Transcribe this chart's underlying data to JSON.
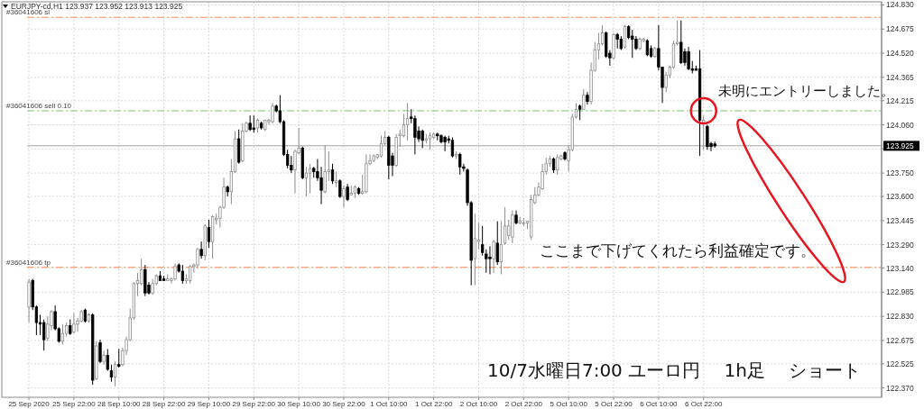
{
  "chart_data": {
    "type": "candlestick",
    "title": "EURJPY-cd,H1  123.937 123.952 123.913 123.925",
    "annotations": [
      "未明にエントリーしました。",
      "ここまで下げてくれたら利益確定です。",
      "10/7水曜日7:00 ユーロ円　 1h足　 ショート"
    ],
    "categories": [
      "25 Sep 2020",
      null,
      null,
      null,
      null,
      null,
      null,
      null,
      null,
      null,
      null,
      null,
      "25 Sep 22:00",
      null,
      null,
      null,
      null,
      null,
      null,
      null,
      null,
      null,
      null,
      null,
      "28 Sep 10:00",
      null,
      null,
      null,
      null,
      null,
      null,
      null,
      null,
      null,
      null,
      null,
      "28 Sep 22:00",
      null,
      null,
      null,
      null,
      null,
      null,
      null,
      null,
      null,
      null,
      null,
      "29 Sep 10:00",
      null,
      null,
      null,
      null,
      null,
      null,
      null,
      null,
      null,
      null,
      null,
      "29 Sep 22:00",
      null,
      null,
      null,
      null,
      null,
      null,
      null,
      null,
      null,
      null,
      null,
      "30 Sep 10:00",
      null,
      null,
      null,
      null,
      null,
      null,
      null,
      null,
      null,
      null,
      null,
      "30 Sep 22:00",
      null,
      null,
      null,
      null,
      null,
      null,
      null,
      null,
      null,
      null,
      null,
      "1 Oct 10:00",
      null,
      null,
      null,
      null,
      null,
      null,
      null,
      null,
      null,
      null,
      null,
      "1 Oct 22:00",
      null,
      null,
      null,
      null,
      null,
      null,
      null,
      null,
      null,
      null,
      null,
      "2 Oct 10:00",
      null,
      null,
      null,
      null,
      null,
      null,
      null,
      null,
      null,
      null,
      null,
      "2 Oct 22:00",
      null,
      null,
      null,
      null,
      null,
      null,
      null,
      null,
      null,
      null,
      null,
      "5 Oct 10:00",
      null,
      null,
      null,
      null,
      null,
      null,
      null,
      null,
      null,
      null,
      null,
      "5 Oct 22:00",
      null,
      null,
      null,
      null,
      null,
      null,
      null,
      null,
      null,
      null,
      null,
      "6 Oct 10:00",
      null,
      null,
      null,
      null,
      null,
      null,
      null,
      null,
      null,
      null,
      null,
      "6 Oct 22:00",
      null,
      null,
      null,
      null,
      null,
      null,
      null,
      null,
      null,
      null,
      null,
      null,
      null,
      null,
      null,
      null,
      null,
      null,
      null,
      null,
      null,
      null,
      null,
      null,
      null,
      null,
      null,
      null,
      null,
      null,
      null,
      null,
      null,
      null,
      null,
      null,
      null,
      null,
      null,
      null,
      null,
      null,
      null,
      null,
      null,
      null,
      null
    ],
    "ohlc": [
      [
        122.89,
        123.07,
        122.79,
        123.05
      ],
      [
        123.06,
        123.07,
        122.87,
        122.89
      ],
      [
        122.89,
        122.9,
        122.71,
        122.79
      ],
      [
        122.79,
        122.84,
        122.71,
        122.78
      ],
      [
        122.79,
        122.81,
        122.61,
        122.68
      ],
      [
        122.69,
        122.83,
        122.67,
        122.78
      ],
      [
        122.77,
        122.87,
        122.74,
        122.86
      ],
      [
        122.86,
        122.9,
        122.74,
        122.75
      ],
      [
        122.75,
        122.76,
        122.66,
        122.67
      ],
      [
        122.67,
        122.78,
        122.65,
        122.72
      ],
      [
        122.72,
        122.79,
        122.7,
        122.77
      ],
      [
        122.77,
        122.81,
        122.71,
        122.72
      ],
      [
        122.73,
        122.85,
        122.72,
        122.78
      ],
      [
        122.78,
        122.82,
        122.73,
        122.8
      ],
      [
        122.8,
        122.87,
        122.79,
        122.86
      ],
      [
        122.87,
        122.88,
        122.79,
        122.8
      ],
      [
        122.8,
        122.85,
        122.79,
        122.84
      ],
      [
        122.84,
        122.85,
        122.39,
        122.42
      ],
      [
        122.43,
        122.67,
        122.42,
        122.64
      ],
      [
        122.66,
        122.68,
        122.53,
        122.54
      ],
      [
        122.54,
        122.61,
        122.52,
        122.58
      ],
      [
        122.58,
        122.62,
        122.48,
        122.49
      ],
      [
        122.48,
        122.52,
        122.41,
        122.44
      ],
      [
        122.44,
        122.54,
        122.38,
        122.52
      ],
      [
        122.52,
        122.62,
        122.5,
        122.51
      ],
      [
        122.52,
        122.63,
        122.51,
        122.61
      ],
      [
        122.61,
        122.7,
        122.58,
        122.68
      ],
      [
        122.68,
        122.88,
        122.67,
        122.82
      ],
      [
        122.82,
        123.05,
        122.81,
        123.04
      ],
      [
        123.04,
        123.11,
        122.96,
        123.06
      ],
      [
        123.04,
        123.2,
        123.03,
        123.13
      ],
      [
        123.13,
        123.16,
        122.96,
        122.98
      ],
      [
        123.03,
        123.05,
        122.97,
        122.98
      ],
      [
        122.98,
        123.07,
        122.97,
        123.04
      ],
      [
        123.04,
        123.1,
        123.03,
        123.09
      ],
      [
        123.09,
        123.12,
        123.06,
        123.06
      ],
      [
        123.07,
        123.09,
        123.06,
        123.06
      ],
      [
        123.06,
        123.1,
        123.06,
        123.07
      ],
      [
        123.06,
        123.08,
        123.04,
        123.07
      ],
      [
        123.07,
        123.17,
        123.06,
        123.15
      ],
      [
        123.16,
        123.17,
        123.11,
        123.12
      ],
      [
        123.12,
        123.16,
        123.04,
        123.06
      ],
      [
        123.06,
        123.1,
        123.04,
        123.07
      ],
      [
        123.06,
        123.16,
        123.04,
        123.15
      ],
      [
        123.15,
        123.17,
        123.11,
        123.16
      ],
      [
        123.16,
        123.27,
        123.14,
        123.26
      ],
      [
        123.26,
        123.31,
        123.2,
        123.22
      ],
      [
        123.22,
        123.42,
        123.19,
        123.41
      ],
      [
        123.4,
        123.45,
        123.27,
        123.31
      ],
      [
        123.31,
        123.48,
        123.2,
        123.47
      ],
      [
        123.45,
        123.49,
        123.42,
        123.46
      ],
      [
        123.46,
        123.54,
        123.4,
        123.53
      ],
      [
        123.53,
        123.72,
        123.52,
        123.66
      ],
      [
        123.66,
        123.67,
        123.6,
        123.63
      ],
      [
        123.63,
        123.84,
        123.55,
        123.76
      ],
      [
        123.76,
        124.02,
        123.75,
        123.97
      ],
      [
        123.97,
        124.03,
        123.81,
        123.82
      ],
      [
        123.83,
        124.07,
        123.82,
        124.02
      ],
      [
        124.02,
        124.08,
        124.01,
        124.07
      ],
      [
        124.07,
        124.12,
        124.02,
        124.03
      ],
      [
        124.04,
        124.12,
        124.01,
        124.03
      ],
      [
        124.04,
        124.1,
        124.01,
        124.09
      ],
      [
        124.07,
        124.08,
        124.03,
        124.04
      ],
      [
        124.03,
        124.09,
        124.02,
        124.09
      ],
      [
        124.08,
        124.1,
        124.06,
        124.09
      ],
      [
        124.08,
        124.2,
        124.07,
        124.18
      ],
      [
        124.18,
        124.19,
        124.14,
        124.15
      ],
      [
        124.15,
        124.25,
        124.07,
        124.08
      ],
      [
        124.08,
        124.09,
        123.86,
        123.87
      ],
      [
        123.87,
        123.9,
        123.78,
        123.8
      ],
      [
        123.8,
        123.86,
        123.75,
        123.77
      ],
      [
        123.77,
        123.9,
        123.62,
        123.89
      ],
      [
        123.88,
        124.04,
        123.87,
        123.91
      ],
      [
        123.91,
        123.92,
        123.71,
        123.72
      ],
      [
        123.72,
        123.79,
        123.6,
        123.75
      ],
      [
        123.75,
        123.81,
        123.62,
        123.78
      ],
      [
        123.78,
        123.79,
        123.72,
        123.76
      ],
      [
        123.76,
        123.84,
        123.7,
        123.72
      ],
      [
        123.72,
        123.79,
        123.55,
        123.64
      ],
      [
        123.63,
        123.93,
        123.62,
        123.76
      ],
      [
        123.76,
        123.89,
        123.7,
        123.77
      ],
      [
        123.77,
        123.81,
        123.68,
        123.7
      ],
      [
        123.69,
        123.76,
        123.66,
        123.7
      ],
      [
        123.7,
        123.71,
        123.59,
        123.6
      ],
      [
        123.6,
        123.67,
        123.53,
        123.65
      ],
      [
        123.66,
        123.68,
        123.57,
        123.58
      ],
      [
        123.61,
        123.67,
        123.61,
        123.62
      ],
      [
        123.62,
        123.67,
        123.59,
        123.66
      ],
      [
        123.65,
        123.66,
        123.61,
        123.62
      ],
      [
        123.62,
        123.74,
        123.61,
        123.63
      ],
      [
        123.63,
        123.87,
        123.62,
        123.81
      ],
      [
        123.81,
        123.87,
        123.8,
        123.83
      ],
      [
        123.83,
        123.87,
        123.82,
        123.86
      ],
      [
        123.85,
        123.87,
        123.84,
        123.87
      ],
      [
        123.86,
        123.99,
        123.85,
        123.94
      ],
      [
        123.94,
        124.02,
        123.93,
        123.98
      ],
      [
        123.98,
        123.99,
        123.71,
        123.8
      ],
      [
        123.86,
        123.88,
        123.73,
        123.8
      ],
      [
        123.8,
        124.0,
        123.79,
        123.98
      ],
      [
        123.99,
        124.03,
        123.92,
        124.0
      ],
      [
        123.99,
        124.13,
        123.98,
        124.06
      ],
      [
        124.06,
        124.2,
        123.96,
        124.1
      ],
      [
        124.11,
        124.16,
        124.07,
        124.1
      ],
      [
        124.1,
        124.12,
        123.87,
        123.98
      ],
      [
        124.02,
        124.05,
        123.95,
        123.97
      ],
      [
        124.02,
        124.03,
        123.91,
        123.96
      ],
      [
        123.96,
        124.0,
        123.94,
        123.97
      ],
      [
        123.97,
        124.01,
        123.9,
        123.99
      ],
      [
        123.98,
        124.01,
        123.97,
        124.0
      ],
      [
        124.0,
        124.01,
        123.96,
        123.99
      ],
      [
        123.99,
        124.0,
        123.94,
        123.95
      ],
      [
        123.98,
        123.99,
        123.89,
        123.95
      ],
      [
        123.97,
        123.99,
        123.94,
        123.96
      ],
      [
        123.96,
        123.98,
        123.85,
        123.86
      ],
      [
        123.86,
        123.89,
        123.84,
        123.87
      ],
      [
        123.87,
        123.88,
        123.74,
        123.79
      ],
      [
        123.79,
        123.81,
        123.76,
        123.78
      ],
      [
        123.77,
        123.78,
        123.54,
        123.56
      ],
      [
        123.56,
        123.57,
        123.03,
        123.19
      ],
      [
        123.2,
        123.49,
        123.03,
        123.33
      ],
      [
        123.31,
        123.43,
        123.26,
        123.32
      ],
      [
        123.29,
        123.41,
        123.22,
        123.24
      ],
      [
        123.23,
        123.26,
        123.11,
        123.2
      ],
      [
        123.21,
        123.28,
        123.1,
        123.2
      ],
      [
        123.2,
        123.32,
        123.11,
        123.31
      ],
      [
        123.3,
        123.44,
        123.16,
        123.18
      ],
      [
        123.18,
        123.44,
        123.1,
        123.29
      ],
      [
        123.3,
        123.53,
        123.29,
        123.41
      ],
      [
        123.35,
        123.45,
        123.32,
        123.41
      ],
      [
        123.34,
        123.51,
        123.3,
        123.48
      ],
      [
        123.48,
        123.51,
        123.42,
        123.43
      ],
      [
        123.43,
        123.47,
        123.42,
        123.44
      ],
      [
        123.43,
        123.46,
        123.41,
        123.43
      ],
      [
        123.43,
        123.44,
        123.39,
        123.44
      ],
      [
        123.34,
        123.61,
        123.32,
        123.58
      ],
      [
        123.56,
        123.66,
        123.55,
        123.61
      ],
      [
        123.61,
        123.69,
        123.6,
        123.66
      ],
      [
        123.65,
        123.81,
        123.64,
        123.76
      ],
      [
        123.76,
        123.85,
        123.74,
        123.81
      ],
      [
        123.81,
        123.86,
        123.79,
        123.84
      ],
      [
        123.84,
        123.85,
        123.75,
        123.77
      ],
      [
        123.77,
        123.87,
        123.74,
        123.85
      ],
      [
        123.84,
        123.87,
        123.83,
        123.86
      ],
      [
        123.88,
        123.89,
        123.83,
        123.84
      ],
      [
        123.83,
        123.93,
        123.76,
        123.9
      ],
      [
        123.9,
        124.13,
        123.89,
        124.11
      ],
      [
        124.11,
        124.2,
        124.1,
        124.16
      ],
      [
        124.18,
        124.19,
        124.09,
        124.16
      ],
      [
        124.16,
        124.29,
        124.16,
        124.25
      ],
      [
        124.25,
        124.27,
        124.19,
        124.21
      ],
      [
        124.21,
        124.46,
        124.19,
        124.41
      ],
      [
        124.41,
        124.59,
        124.4,
        124.54
      ],
      [
        124.54,
        124.65,
        124.48,
        124.58
      ],
      [
        124.58,
        124.7,
        124.57,
        124.65
      ],
      [
        124.65,
        124.66,
        124.49,
        124.5
      ],
      [
        124.52,
        124.54,
        124.44,
        124.49
      ],
      [
        124.49,
        124.65,
        124.48,
        124.64
      ],
      [
        124.64,
        124.65,
        124.55,
        124.61
      ],
      [
        124.61,
        124.63,
        124.54,
        124.55
      ],
      [
        124.56,
        124.7,
        124.55,
        124.69
      ],
      [
        124.69,
        124.7,
        124.61,
        124.62
      ],
      [
        124.63,
        124.67,
        124.49,
        124.61
      ],
      [
        124.61,
        124.63,
        124.54,
        124.55
      ],
      [
        124.55,
        124.62,
        124.54,
        124.61
      ],
      [
        124.6,
        124.62,
        124.59,
        124.61
      ],
      [
        124.6,
        124.61,
        124.5,
        124.51
      ],
      [
        124.55,
        124.57,
        124.49,
        124.5
      ],
      [
        124.5,
        124.56,
        124.49,
        124.55
      ],
      [
        124.55,
        124.7,
        124.41,
        124.43
      ],
      [
        124.43,
        124.43,
        124.2,
        124.3
      ],
      [
        124.3,
        124.4,
        124.27,
        124.38
      ],
      [
        124.38,
        124.44,
        124.36,
        124.43
      ],
      [
        124.43,
        124.6,
        124.42,
        124.58
      ],
      [
        124.58,
        124.73,
        124.57,
        124.59
      ],
      [
        124.59,
        124.73,
        124.45,
        124.46
      ],
      [
        124.53,
        124.55,
        124.44,
        124.46
      ],
      [
        124.53,
        124.56,
        124.41,
        124.42
      ],
      [
        124.42,
        124.47,
        124.39,
        124.41
      ],
      [
        124.42,
        124.44,
        124.41,
        124.41
      ],
      [
        124.42,
        124.54,
        123.86,
        124.09
      ],
      [
        124.07,
        124.12,
        123.9,
        124.09
      ],
      [
        124.05,
        124.06,
        123.9,
        123.92
      ],
      [
        123.94,
        123.95,
        123.89,
        123.92
      ],
      [
        123.937,
        123.952,
        123.913,
        123.925
      ],
      null,
      null,
      null,
      null,
      null,
      null,
      null,
      null,
      null,
      null,
      null,
      null,
      null,
      null,
      null,
      null,
      null,
      null,
      null,
      null,
      null,
      null,
      null,
      null,
      null,
      null,
      null,
      null,
      null,
      null,
      null,
      null,
      null,
      null,
      null,
      null,
      null,
      null,
      null,
      null,
      null,
      null,
      null,
      null
    ],
    "ylim": [
      122.31,
      124.85
    ],
    "yticks": [
      {
        "value": 124.83,
        "label": "124.830"
      },
      {
        "value": 124.675,
        "label": "124.675"
      },
      {
        "value": 124.52,
        "label": "124.520"
      },
      124.365,
      124.215,
      {
        "value": 124.06,
        "label": "124.060"
      },
      {
        "value": 123.905,
        "label": null
      },
      {
        "value": 123.75,
        "label": "123.750"
      },
      {
        "value": 123.6,
        "label": "123.600"
      },
      123.445,
      {
        "value": 123.29,
        "label": "123.290"
      },
      {
        "value": 123.14,
        "label": "123.140"
      },
      122.985,
      {
        "value": 122.83,
        "label": "122.830"
      },
      122.675,
      122.525,
      {
        "value": 122.37,
        "label": "122.370"
      }
    ],
    "grid": true,
    "ref_lines": [
      {
        "axis": "y",
        "value": 124.75,
        "label": "#36041606 sl",
        "color": "#ff8c5a",
        "line_style": "dashed"
      },
      {
        "axis": "y",
        "value": 124.15,
        "label": "#36041606 sell 0.10",
        "color": "#7cc07c",
        "line_style": "dashed"
      },
      {
        "axis": "y",
        "value": 123.145,
        "label": "#36041606 tp",
        "color": "#ff8c5a",
        "line_style": "dashed"
      },
      {
        "axis": "y",
        "value": 123.925,
        "label": "123.925",
        "color": "#c0c0c0",
        "line_style": "solid"
      }
    ]
  }
}
